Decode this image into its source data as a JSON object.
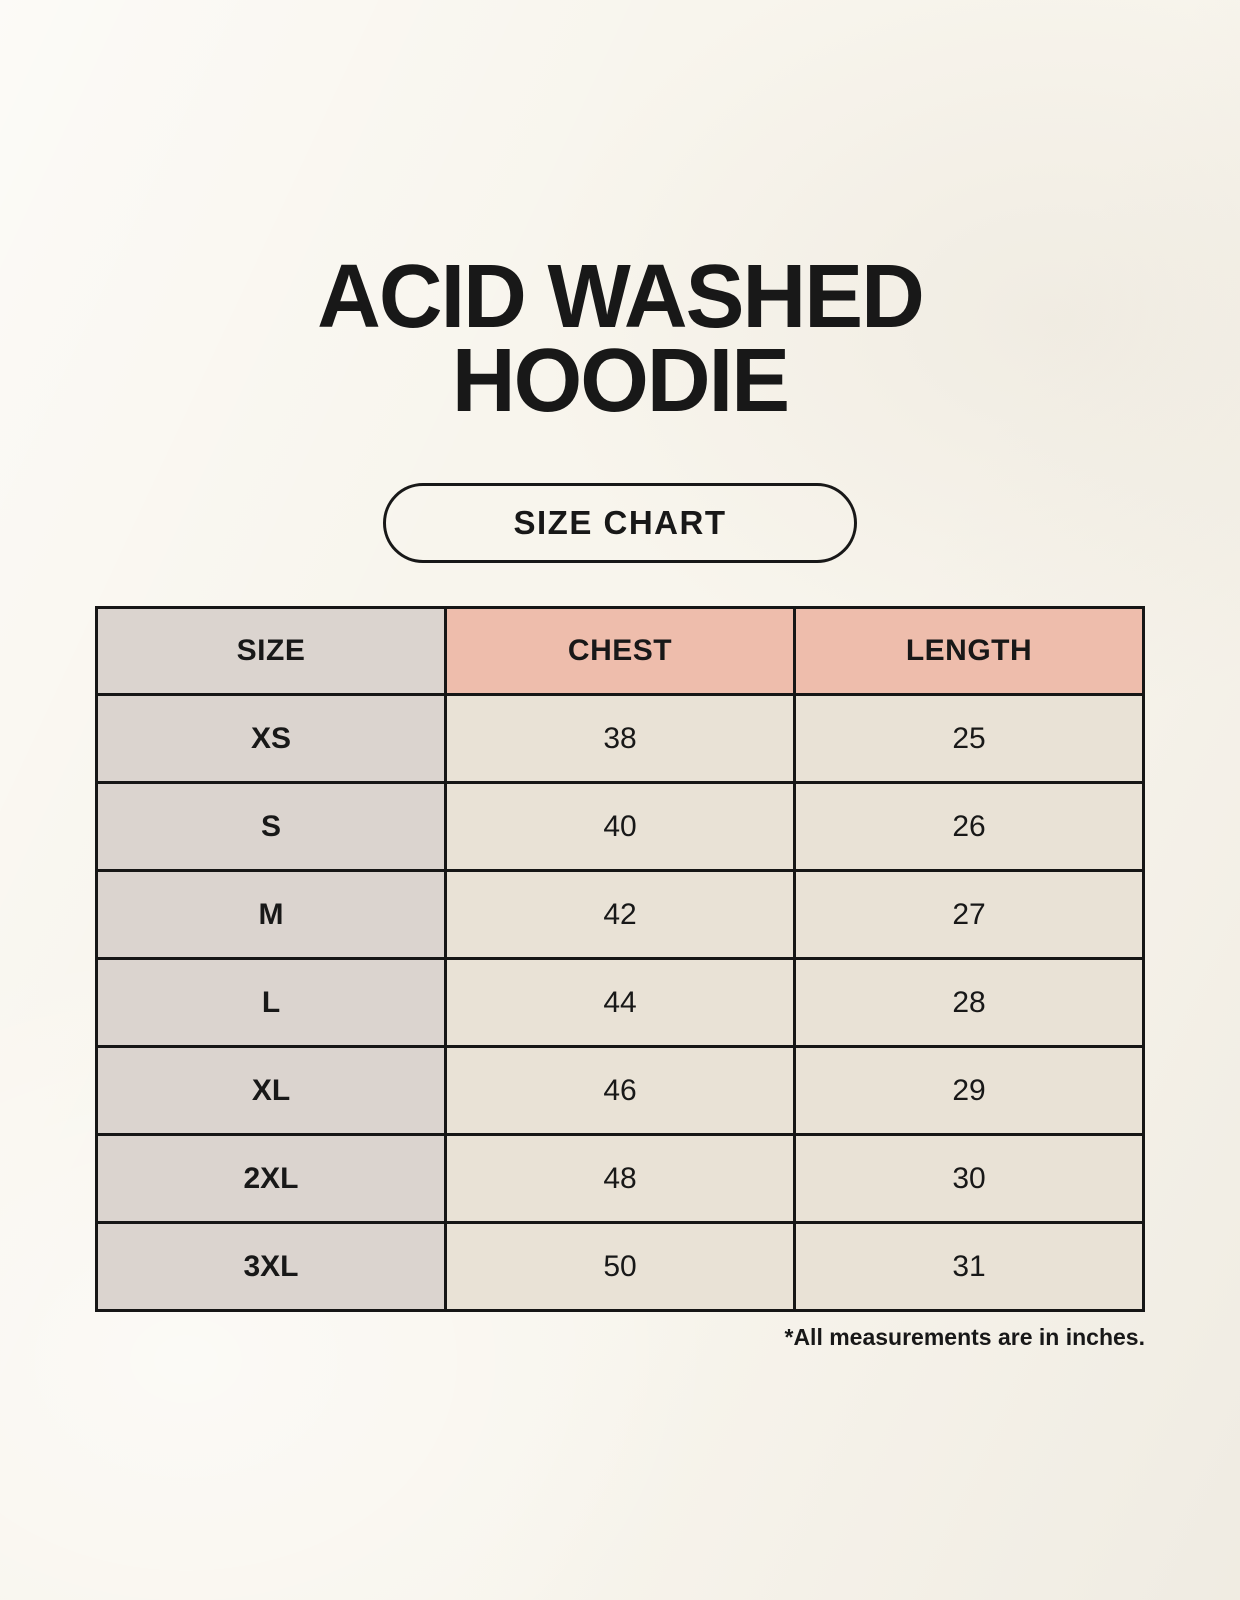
{
  "header": {
    "title_line1": "ACID WASHED",
    "title_line2": "HOODIE",
    "size_chart_label": "SIZE CHART"
  },
  "table": {
    "columns": [
      "SIZE",
      "CHEST",
      "LENGTH"
    ],
    "rows": [
      {
        "size": "XS",
        "chest": "38",
        "length": "25"
      },
      {
        "size": "S",
        "chest": "40",
        "length": "26"
      },
      {
        "size": "M",
        "chest": "42",
        "length": "27"
      },
      {
        "size": "L",
        "chest": "44",
        "length": "28"
      },
      {
        "size": "XL",
        "chest": "46",
        "length": "29"
      },
      {
        "size": "2XL",
        "chest": "48",
        "length": "30"
      },
      {
        "size": "3XL",
        "chest": "50",
        "length": "31"
      }
    ]
  },
  "footer": {
    "note": "*All measurements are in inches."
  },
  "colors": {
    "background": "#f8f5ed",
    "text": "#181818",
    "table_border": "#161616",
    "size_column_bg": "#dbd4cf",
    "measure_header_bg": "#eebdac",
    "value_cell_bg": "#e9e2d6"
  },
  "chart_data": {
    "type": "table",
    "title": "ACID WASHED HOODIE — SIZE CHART",
    "columns": [
      "SIZE",
      "CHEST",
      "LENGTH"
    ],
    "rows": [
      [
        "XS",
        38,
        25
      ],
      [
        "S",
        40,
        26
      ],
      [
        "M",
        42,
        27
      ],
      [
        "L",
        44,
        28
      ],
      [
        "XL",
        46,
        29
      ],
      [
        "2XL",
        48,
        30
      ],
      [
        "3XL",
        50,
        31
      ]
    ],
    "units": "inches"
  }
}
